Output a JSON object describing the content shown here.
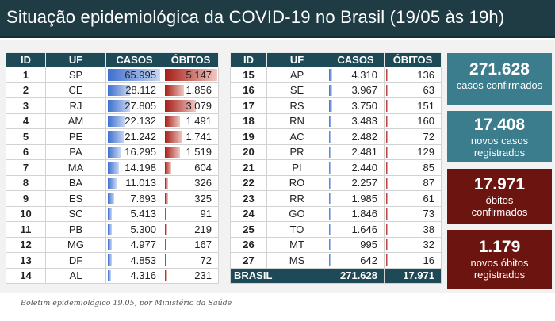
{
  "title": "Situação epidemiológica da COVID-19 no Brasil (19/05 às 19h)",
  "columns": {
    "id": "ID",
    "uf": "UF",
    "casos": "CASOS",
    "obitos": "ÓBITOS"
  },
  "max_casos": 65995,
  "max_obitos": 5147,
  "table_left": [
    {
      "id": "1",
      "uf": "SP",
      "casos": "65.995",
      "obitos": "5.147",
      "casos_n": 65995,
      "obitos_n": 5147
    },
    {
      "id": "2",
      "uf": "CE",
      "casos": "28.112",
      "obitos": "1.856",
      "casos_n": 28112,
      "obitos_n": 1856
    },
    {
      "id": "3",
      "uf": "RJ",
      "casos": "27.805",
      "obitos": "3.079",
      "casos_n": 27805,
      "obitos_n": 3079
    },
    {
      "id": "4",
      "uf": "AM",
      "casos": "22.132",
      "obitos": "1.491",
      "casos_n": 22132,
      "obitos_n": 1491
    },
    {
      "id": "5",
      "uf": "PE",
      "casos": "21.242",
      "obitos": "1.741",
      "casos_n": 21242,
      "obitos_n": 1741
    },
    {
      "id": "6",
      "uf": "PA",
      "casos": "16.295",
      "obitos": "1.519",
      "casos_n": 16295,
      "obitos_n": 1519
    },
    {
      "id": "7",
      "uf": "MA",
      "casos": "14.198",
      "obitos": "604",
      "casos_n": 14198,
      "obitos_n": 604
    },
    {
      "id": "8",
      "uf": "BA",
      "casos": "11.013",
      "obitos": "326",
      "casos_n": 11013,
      "obitos_n": 326
    },
    {
      "id": "9",
      "uf": "ES",
      "casos": "7.693",
      "obitos": "325",
      "casos_n": 7693,
      "obitos_n": 325
    },
    {
      "id": "10",
      "uf": "SC",
      "casos": "5.413",
      "obitos": "91",
      "casos_n": 5413,
      "obitos_n": 91
    },
    {
      "id": "11",
      "uf": "PB",
      "casos": "5.300",
      "obitos": "219",
      "casos_n": 5300,
      "obitos_n": 219
    },
    {
      "id": "12",
      "uf": "MG",
      "casos": "4.977",
      "obitos": "167",
      "casos_n": 4977,
      "obitos_n": 167
    },
    {
      "id": "13",
      "uf": "DF",
      "casos": "4.853",
      "obitos": "72",
      "casos_n": 4853,
      "obitos_n": 72
    },
    {
      "id": "14",
      "uf": "AL",
      "casos": "4.316",
      "obitos": "231",
      "casos_n": 4316,
      "obitos_n": 231
    }
  ],
  "table_right": [
    {
      "id": "15",
      "uf": "AP",
      "casos": "4.310",
      "obitos": "136",
      "casos_n": 4310,
      "obitos_n": 136
    },
    {
      "id": "16",
      "uf": "SE",
      "casos": "3.967",
      "obitos": "63",
      "casos_n": 3967,
      "obitos_n": 63
    },
    {
      "id": "17",
      "uf": "RS",
      "casos": "3.750",
      "obitos": "151",
      "casos_n": 3750,
      "obitos_n": 151
    },
    {
      "id": "18",
      "uf": "RN",
      "casos": "3.483",
      "obitos": "160",
      "casos_n": 3483,
      "obitos_n": 160
    },
    {
      "id": "19",
      "uf": "AC",
      "casos": "2.482",
      "obitos": "72",
      "casos_n": 2482,
      "obitos_n": 72
    },
    {
      "id": "20",
      "uf": "PR",
      "casos": "2.481",
      "obitos": "129",
      "casos_n": 2481,
      "obitos_n": 129
    },
    {
      "id": "21",
      "uf": "PI",
      "casos": "2.440",
      "obitos": "85",
      "casos_n": 2440,
      "obitos_n": 85
    },
    {
      "id": "22",
      "uf": "RO",
      "casos": "2.257",
      "obitos": "87",
      "casos_n": 2257,
      "obitos_n": 87
    },
    {
      "id": "23",
      "uf": "RR",
      "casos": "1.985",
      "obitos": "61",
      "casos_n": 1985,
      "obitos_n": 61
    },
    {
      "id": "24",
      "uf": "GO",
      "casos": "1.846",
      "obitos": "73",
      "casos_n": 1846,
      "obitos_n": 73
    },
    {
      "id": "25",
      "uf": "TO",
      "casos": "1.646",
      "obitos": "38",
      "casos_n": 1646,
      "obitos_n": 38
    },
    {
      "id": "26",
      "uf": "MT",
      "casos": "995",
      "obitos": "32",
      "casos_n": 995,
      "obitos_n": 32
    },
    {
      "id": "27",
      "uf": "MS",
      "casos": "642",
      "obitos": "16",
      "casos_n": 642,
      "obitos_n": 16
    }
  ],
  "total": {
    "label": "BRASIL",
    "casos": "271.628",
    "obitos": "17.971"
  },
  "cards": [
    {
      "value": "271.628",
      "line1": "casos confirmados",
      "line2": ""
    },
    {
      "value": "17.408",
      "line1": "novos casos",
      "line2": "registrados"
    },
    {
      "value": "17.971",
      "line1": "óbitos",
      "line2": "confirmados"
    },
    {
      "value": "1.179",
      "line1": "novos óbitos",
      "line2": "registrados"
    }
  ],
  "caption": "Boletim epidemiológico 19.05, por Ministério da Saúde",
  "colors": {
    "header": "#1f3b44",
    "table_header": "#1e4a58",
    "teal_card": "#3b7c8d",
    "maroon_card": "#6b1410",
    "cases_bar": "#3d6fcf",
    "deaths_bar": "#a61c14"
  }
}
